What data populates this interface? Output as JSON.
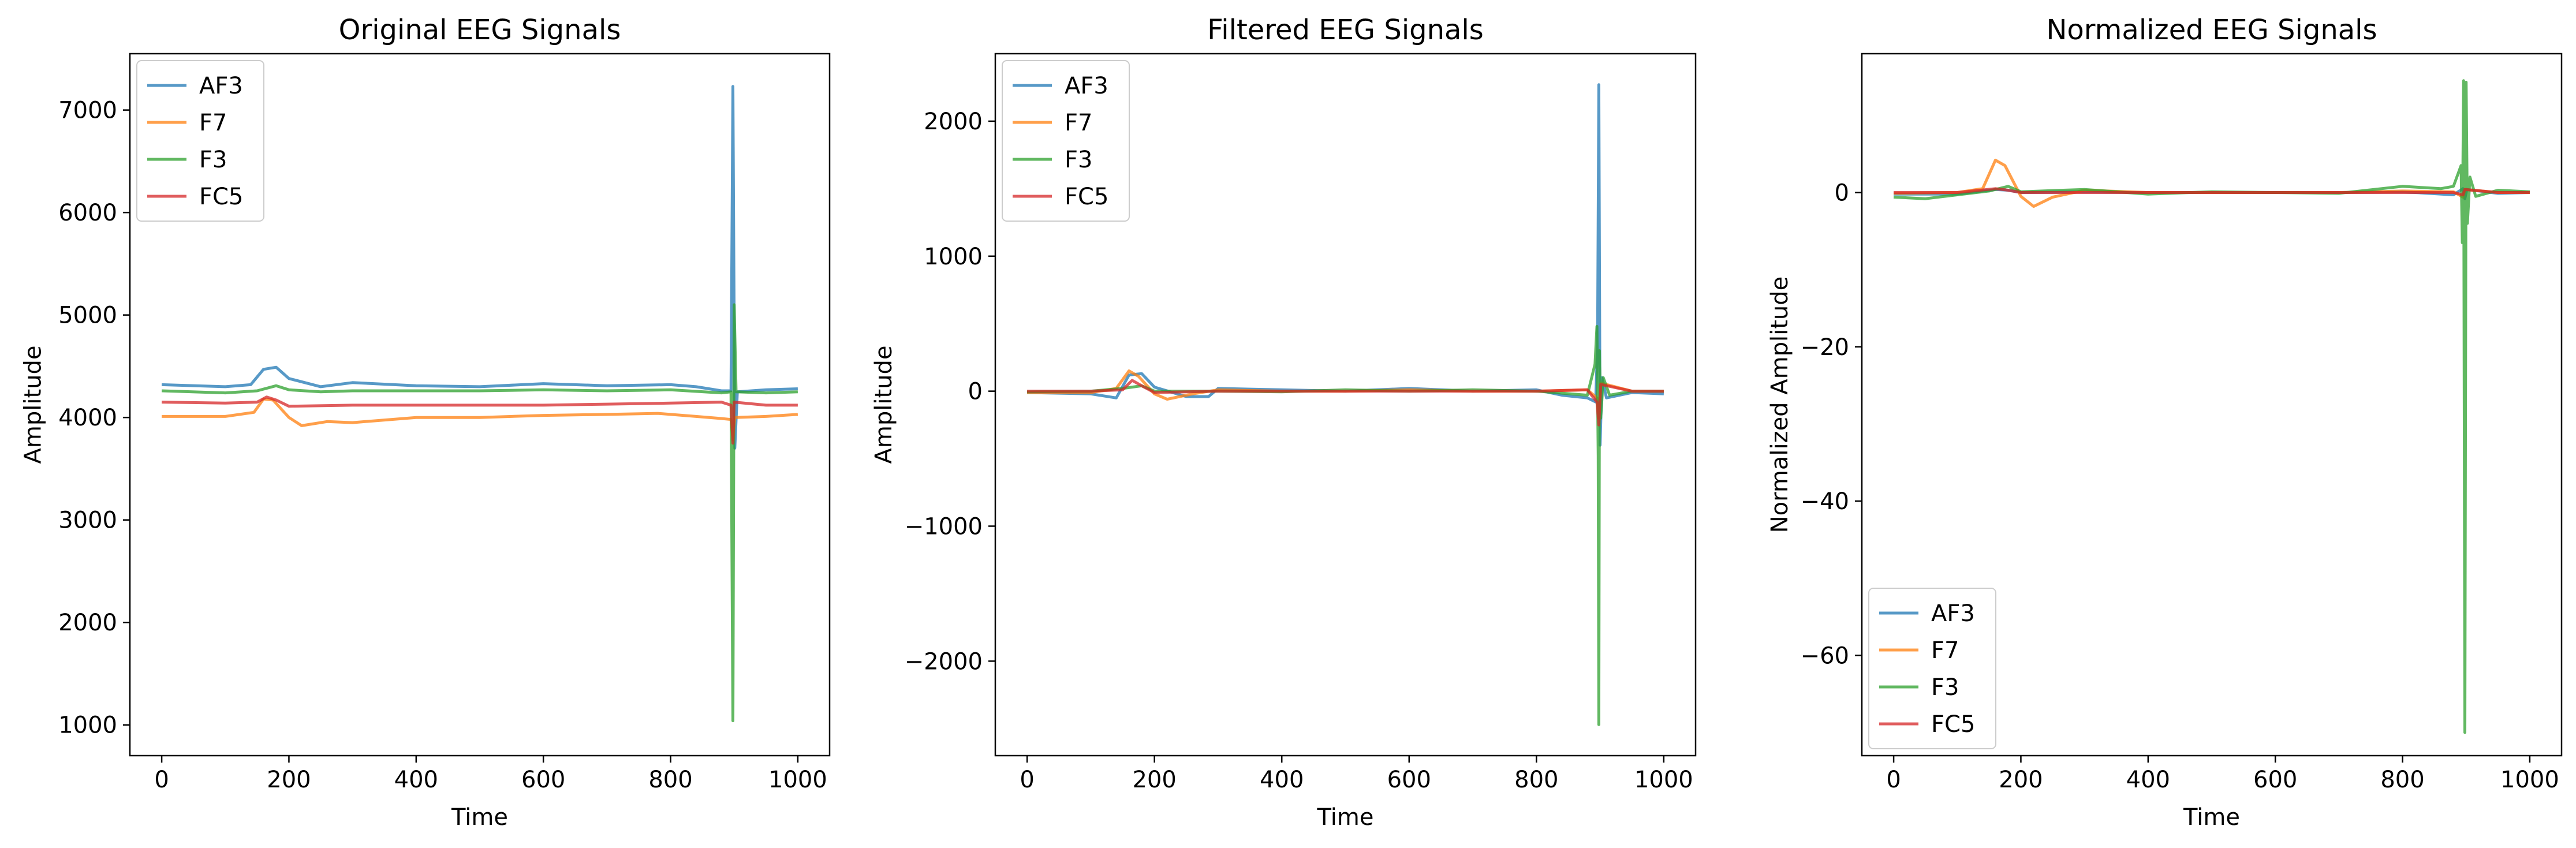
{
  "chart_data": [
    {
      "type": "line",
      "title": "Original EEG Signals",
      "xlabel": "Time",
      "ylabel": "Amplitude",
      "xlim": [
        -50,
        1050
      ],
      "ylim": [
        700,
        7550
      ],
      "xticks": [
        0,
        200,
        400,
        600,
        800,
        1000
      ],
      "yticks": [
        1000,
        2000,
        3000,
        4000,
        5000,
        6000,
        7000
      ],
      "legend_position": "upper left",
      "grid": false,
      "series": [
        {
          "name": "AF3",
          "color": "#1f77b4",
          "points": [
            [
              0,
              4320
            ],
            [
              100,
              4300
            ],
            [
              140,
              4320
            ],
            [
              160,
              4470
            ],
            [
              180,
              4490
            ],
            [
              200,
              4380
            ],
            [
              250,
              4300
            ],
            [
              300,
              4340
            ],
            [
              400,
              4310
            ],
            [
              500,
              4300
            ],
            [
              600,
              4330
            ],
            [
              700,
              4310
            ],
            [
              800,
              4320
            ],
            [
              840,
              4300
            ],
            [
              880,
              4260
            ],
            [
              895,
              4260
            ],
            [
              898,
              7230
            ],
            [
              901,
              3700
            ],
            [
              905,
              4250
            ],
            [
              950,
              4270
            ],
            [
              1000,
              4280
            ]
          ]
        },
        {
          "name": "F7",
          "color": "#ff7f0e",
          "points": [
            [
              0,
              4010
            ],
            [
              100,
              4010
            ],
            [
              145,
              4050
            ],
            [
              160,
              4180
            ],
            [
              175,
              4170
            ],
            [
              200,
              4000
            ],
            [
              220,
              3920
            ],
            [
              260,
              3960
            ],
            [
              300,
              3950
            ],
            [
              400,
              4000
            ],
            [
              500,
              4000
            ],
            [
              600,
              4020
            ],
            [
              700,
              4030
            ],
            [
              780,
              4040
            ],
            [
              840,
              4010
            ],
            [
              880,
              3990
            ],
            [
              895,
              3980
            ],
            [
              898,
              3780
            ],
            [
              901,
              4000
            ],
            [
              950,
              4010
            ],
            [
              1000,
              4030
            ]
          ]
        },
        {
          "name": "F3",
          "color": "#2ca02c",
          "points": [
            [
              0,
              4260
            ],
            [
              100,
              4240
            ],
            [
              150,
              4260
            ],
            [
              180,
              4310
            ],
            [
              200,
              4270
            ],
            [
              250,
              4250
            ],
            [
              300,
              4260
            ],
            [
              400,
              4260
            ],
            [
              500,
              4260
            ],
            [
              600,
              4270
            ],
            [
              700,
              4260
            ],
            [
              800,
              4270
            ],
            [
              880,
              4240
            ],
            [
              895,
              4250
            ],
            [
              898,
              1040
            ],
            [
              900,
              5100
            ],
            [
              903,
              4250
            ],
            [
              950,
              4240
            ],
            [
              1000,
              4250
            ]
          ]
        },
        {
          "name": "FC5",
          "color": "#d62728",
          "points": [
            [
              0,
              4150
            ],
            [
              100,
              4140
            ],
            [
              150,
              4150
            ],
            [
              165,
              4200
            ],
            [
              180,
              4170
            ],
            [
              200,
              4110
            ],
            [
              300,
              4120
            ],
            [
              400,
              4120
            ],
            [
              500,
              4120
            ],
            [
              600,
              4120
            ],
            [
              700,
              4130
            ],
            [
              800,
              4140
            ],
            [
              880,
              4150
            ],
            [
              895,
              4120
            ],
            [
              898,
              3750
            ],
            [
              900,
              4150
            ],
            [
              950,
              4120
            ],
            [
              1000,
              4120
            ]
          ]
        }
      ]
    },
    {
      "type": "line",
      "title": "Filtered EEG Signals",
      "xlabel": "Time",
      "ylabel": "Amplitude",
      "xlim": [
        -50,
        1050
      ],
      "ylim": [
        -2700,
        2500
      ],
      "xticks": [
        0,
        200,
        400,
        600,
        800,
        1000
      ],
      "yticks": [
        -2000,
        -1000,
        0,
        1000,
        2000
      ],
      "legend_position": "upper left",
      "grid": false,
      "series": [
        {
          "name": "AF3",
          "color": "#1f77b4",
          "points": [
            [
              0,
              -10
            ],
            [
              100,
              -20
            ],
            [
              140,
              -50
            ],
            [
              160,
              120
            ],
            [
              180,
              130
            ],
            [
              200,
              30
            ],
            [
              250,
              -40
            ],
            [
              285,
              -40
            ],
            [
              300,
              20
            ],
            [
              400,
              10
            ],
            [
              500,
              0
            ],
            [
              600,
              20
            ],
            [
              700,
              0
            ],
            [
              800,
              10
            ],
            [
              840,
              -30
            ],
            [
              880,
              -50
            ],
            [
              893,
              -80
            ],
            [
              896,
              350
            ],
            [
              898,
              2270
            ],
            [
              900,
              -400
            ],
            [
              903,
              100
            ],
            [
              910,
              -50
            ],
            [
              950,
              -10
            ],
            [
              1000,
              -20
            ]
          ]
        },
        {
          "name": "F7",
          "color": "#ff7f0e",
          "points": [
            [
              0,
              -10
            ],
            [
              100,
              -10
            ],
            [
              140,
              20
            ],
            [
              160,
              150
            ],
            [
              175,
              110
            ],
            [
              200,
              -20
            ],
            [
              220,
              -60
            ],
            [
              260,
              -20
            ],
            [
              300,
              10
            ],
            [
              400,
              0
            ],
            [
              500,
              0
            ],
            [
              600,
              10
            ],
            [
              700,
              0
            ],
            [
              800,
              0
            ],
            [
              880,
              10
            ],
            [
              895,
              -50
            ],
            [
              898,
              -200
            ],
            [
              901,
              60
            ],
            [
              950,
              0
            ],
            [
              1000,
              0
            ]
          ]
        },
        {
          "name": "F3",
          "color": "#2ca02c",
          "points": [
            [
              0,
              -5
            ],
            [
              100,
              0
            ],
            [
              150,
              20
            ],
            [
              180,
              40
            ],
            [
              200,
              0
            ],
            [
              300,
              0
            ],
            [
              400,
              -5
            ],
            [
              500,
              10
            ],
            [
              600,
              0
            ],
            [
              700,
              10
            ],
            [
              800,
              0
            ],
            [
              880,
              -30
            ],
            [
              892,
              200
            ],
            [
              895,
              480
            ],
            [
              897,
              -480
            ],
            [
              898,
              -2470
            ],
            [
              899,
              300
            ],
            [
              901,
              -200
            ],
            [
              905,
              100
            ],
            [
              915,
              -30
            ],
            [
              950,
              0
            ],
            [
              1000,
              0
            ]
          ]
        },
        {
          "name": "FC5",
          "color": "#d62728",
          "points": [
            [
              0,
              0
            ],
            [
              100,
              0
            ],
            [
              150,
              10
            ],
            [
              165,
              80
            ],
            [
              180,
              40
            ],
            [
              200,
              -10
            ],
            [
              300,
              0
            ],
            [
              400,
              0
            ],
            [
              500,
              0
            ],
            [
              600,
              0
            ],
            [
              700,
              0
            ],
            [
              800,
              0
            ],
            [
              880,
              10
            ],
            [
              895,
              -80
            ],
            [
              898,
              -250
            ],
            [
              901,
              50
            ],
            [
              950,
              0
            ],
            [
              1000,
              0
            ]
          ]
        }
      ]
    },
    {
      "type": "line",
      "title": "Normalized EEG Signals",
      "xlabel": "Time",
      "ylabel": "Normalized Amplitude",
      "xlim": [
        -50,
        1050
      ],
      "ylim": [
        -73,
        18
      ],
      "xticks": [
        0,
        200,
        400,
        600,
        800,
        1000
      ],
      "yticks": [
        -60,
        -40,
        -20,
        0
      ],
      "legend_position": "lower left",
      "grid": false,
      "series": [
        {
          "name": "AF3",
          "color": "#1f77b4",
          "points": [
            [
              0,
              -0.2
            ],
            [
              100,
              -0.2
            ],
            [
              160,
              0.4
            ],
            [
              180,
              0.3
            ],
            [
              200,
              0
            ],
            [
              300,
              0.1
            ],
            [
              400,
              0
            ],
            [
              500,
              0
            ],
            [
              600,
              0
            ],
            [
              700,
              0
            ],
            [
              800,
              0.1
            ],
            [
              880,
              -0.3
            ],
            [
              895,
              0.5
            ],
            [
              898,
              -0.8
            ],
            [
              901,
              0.4
            ],
            [
              950,
              -0.1
            ],
            [
              1000,
              0
            ]
          ]
        },
        {
          "name": "F7",
          "color": "#ff7f0e",
          "points": [
            [
              0,
              -0.1
            ],
            [
              100,
              0
            ],
            [
              140,
              0.5
            ],
            [
              160,
              4.2
            ],
            [
              175,
              3.5
            ],
            [
              200,
              -0.5
            ],
            [
              220,
              -1.8
            ],
            [
              250,
              -0.6
            ],
            [
              300,
              0.3
            ],
            [
              400,
              0
            ],
            [
              500,
              0
            ],
            [
              600,
              0
            ],
            [
              700,
              0
            ],
            [
              800,
              0.2
            ],
            [
              880,
              0.1
            ],
            [
              895,
              -0.6
            ],
            [
              898,
              0.4
            ],
            [
              950,
              0
            ],
            [
              1000,
              0
            ]
          ]
        },
        {
          "name": "F3",
          "color": "#2ca02c",
          "points": [
            [
              0,
              -0.6
            ],
            [
              50,
              -0.8
            ],
            [
              100,
              -0.3
            ],
            [
              150,
              0.2
            ],
            [
              180,
              0.8
            ],
            [
              200,
              0.1
            ],
            [
              300,
              0.4
            ],
            [
              400,
              -0.2
            ],
            [
              500,
              0.1
            ],
            [
              600,
              0
            ],
            [
              700,
              -0.1
            ],
            [
              800,
              0.8
            ],
            [
              860,
              0.5
            ],
            [
              880,
              0.8
            ],
            [
              892,
              3.5
            ],
            [
              894,
              -6.5
            ],
            [
              896,
              14.5
            ],
            [
              898,
              -70
            ],
            [
              900,
              14.3
            ],
            [
              902,
              -4
            ],
            [
              906,
              2
            ],
            [
              915,
              -0.5
            ],
            [
              950,
              0.3
            ],
            [
              1000,
              0.1
            ]
          ]
        },
        {
          "name": "FC5",
          "color": "#d62728",
          "points": [
            [
              0,
              0
            ],
            [
              100,
              0
            ],
            [
              160,
              0.5
            ],
            [
              180,
              0.3
            ],
            [
              200,
              0
            ],
            [
              300,
              0
            ],
            [
              400,
              0
            ],
            [
              500,
              0
            ],
            [
              600,
              0
            ],
            [
              700,
              0
            ],
            [
              800,
              0
            ],
            [
              880,
              0
            ],
            [
              895,
              -0.3
            ],
            [
              898,
              0.4
            ],
            [
              950,
              0
            ],
            [
              1000,
              0
            ]
          ]
        }
      ]
    }
  ]
}
